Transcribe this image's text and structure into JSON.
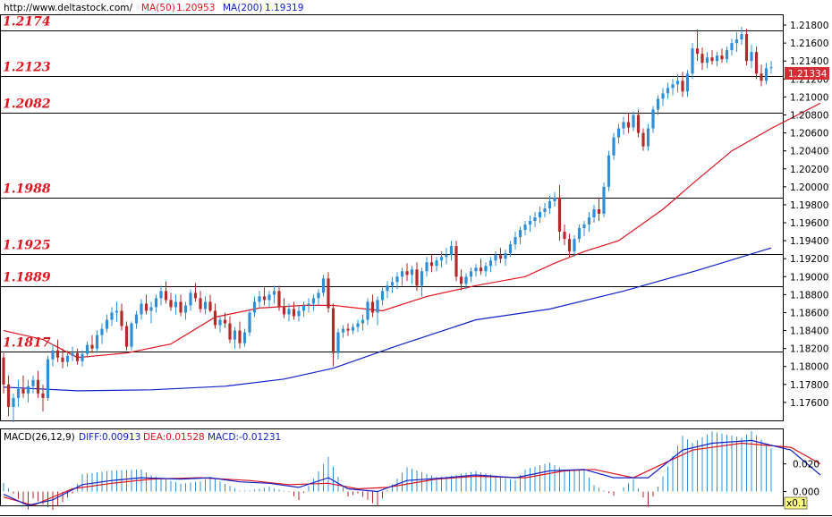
{
  "header": {
    "url": "http://www.deltastock.com/",
    "ma50_label": "MA(50)",
    "ma50_value": "1.20953",
    "ma200_label": "MA(200)",
    "ma200_value": "1.19319"
  },
  "macd_header": {
    "name": "MACD(26,12,9)",
    "diff": "DIFF:0.00913",
    "dea": "DEA:0.01528",
    "macd": "MACD:-0.01231"
  },
  "colors": {
    "up": "#2f8fd6",
    "down": "#b22a2a",
    "ma50": "#e0141e",
    "ma200": "#1020c8",
    "level_text": "#e0141e",
    "price_tag_bg": "#d82c34"
  },
  "levels": [
    "1.2174",
    "1.2123",
    "1.2082",
    "1.1988",
    "1.1925",
    "1.1889",
    "1.1817"
  ],
  "price_tag": "1.21334",
  "macd_scale_tag": "x0.1",
  "chart_data": {
    "type": "candlestick",
    "price_ylim": [
      1.174,
      1.2192
    ],
    "price_ticks": [
      "1.21800",
      "1.21600",
      "1.21400",
      "1.21200",
      "1.21000",
      "1.20800",
      "1.20600",
      "1.20400",
      "1.20200",
      "1.20000",
      "1.19800",
      "1.19600",
      "1.19400",
      "1.19200",
      "1.19000",
      "1.18800",
      "1.18600",
      "1.18400",
      "1.18200",
      "1.18000",
      "1.17800",
      "1.17600"
    ],
    "macd_ylim": [
      -0.01,
      0.045
    ],
    "macd_ticks": [
      "0.020",
      "0.000"
    ],
    "ohlc": [
      [
        1.181,
        1.1815,
        1.177,
        1.178
      ],
      [
        1.178,
        1.179,
        1.1745,
        1.1755
      ],
      [
        1.1755,
        1.177,
        1.1738,
        1.1765
      ],
      [
        1.1765,
        1.1785,
        1.1755,
        1.1775
      ],
      [
        1.1775,
        1.179,
        1.1765,
        1.177
      ],
      [
        1.177,
        1.1785,
        1.176,
        1.1778
      ],
      [
        1.1778,
        1.179,
        1.177,
        1.1785
      ],
      [
        1.1785,
        1.1795,
        1.1765,
        1.177
      ],
      [
        1.177,
        1.178,
        1.175,
        1.1765
      ],
      [
        1.1765,
        1.1812,
        1.1762,
        1.1808
      ],
      [
        1.1808,
        1.1825,
        1.18,
        1.1818
      ],
      [
        1.1818,
        1.183,
        1.1805,
        1.181
      ],
      [
        1.181,
        1.182,
        1.1798,
        1.1805
      ],
      [
        1.1805,
        1.1818,
        1.18,
        1.1812
      ],
      [
        1.1812,
        1.1822,
        1.1806,
        1.1815
      ],
      [
        1.1815,
        1.182,
        1.1802,
        1.1806
      ],
      [
        1.1806,
        1.1818,
        1.18,
        1.1814
      ],
      [
        1.1814,
        1.1828,
        1.181,
        1.1824
      ],
      [
        1.1824,
        1.1835,
        1.1815,
        1.182
      ],
      [
        1.182,
        1.184,
        1.1815,
        1.1835
      ],
      [
        1.1835,
        1.1848,
        1.1825,
        1.1842
      ],
      [
        1.1842,
        1.1858,
        1.1838,
        1.1852
      ],
      [
        1.1852,
        1.1866,
        1.1845,
        1.186
      ],
      [
        1.186,
        1.1872,
        1.185,
        1.1862
      ],
      [
        1.1862,
        1.187,
        1.184,
        1.1845
      ],
      [
        1.1845,
        1.185,
        1.1818,
        1.1822
      ],
      [
        1.1822,
        1.185,
        1.1818,
        1.1848
      ],
      [
        1.1848,
        1.1862,
        1.1842,
        1.1858
      ],
      [
        1.1858,
        1.1875,
        1.1852,
        1.187
      ],
      [
        1.187,
        1.188,
        1.1858,
        1.1862
      ],
      [
        1.1862,
        1.1872,
        1.1848,
        1.1866
      ],
      [
        1.1866,
        1.188,
        1.186,
        1.1876
      ],
      [
        1.1876,
        1.189,
        1.1868,
        1.1884
      ],
      [
        1.1884,
        1.1895,
        1.187,
        1.1874
      ],
      [
        1.1874,
        1.1882,
        1.1862,
        1.1866
      ],
      [
        1.1866,
        1.188,
        1.1858,
        1.1872
      ],
      [
        1.1872,
        1.188,
        1.1856,
        1.186
      ],
      [
        1.186,
        1.1872,
        1.1852,
        1.1868
      ],
      [
        1.1868,
        1.1886,
        1.1862,
        1.1882
      ],
      [
        1.1882,
        1.1893,
        1.1872,
        1.1876
      ],
      [
        1.1876,
        1.1884,
        1.186,
        1.1864
      ],
      [
        1.1864,
        1.1878,
        1.1858,
        1.1872
      ],
      [
        1.1872,
        1.188,
        1.186,
        1.1862
      ],
      [
        1.1862,
        1.187,
        1.1842,
        1.1846
      ],
      [
        1.1846,
        1.1856,
        1.1838,
        1.1852
      ],
      [
        1.1852,
        1.186,
        1.1843,
        1.1848
      ],
      [
        1.1848,
        1.1856,
        1.1826,
        1.183
      ],
      [
        1.183,
        1.1844,
        1.182,
        1.184
      ],
      [
        1.184,
        1.185,
        1.182,
        1.1826
      ],
      [
        1.1826,
        1.1842,
        1.1822,
        1.1838
      ],
      [
        1.1838,
        1.1864,
        1.1834,
        1.186
      ],
      [
        1.186,
        1.1878,
        1.1855,
        1.1872
      ],
      [
        1.1872,
        1.1884,
        1.1865,
        1.1878
      ],
      [
        1.1878,
        1.1888,
        1.1868,
        1.1874
      ],
      [
        1.1874,
        1.1884,
        1.1866,
        1.188
      ],
      [
        1.188,
        1.189,
        1.187,
        1.1884
      ],
      [
        1.1884,
        1.189,
        1.1862,
        1.1866
      ],
      [
        1.1866,
        1.1876,
        1.1854,
        1.1858
      ],
      [
        1.1858,
        1.187,
        1.185,
        1.1864
      ],
      [
        1.1864,
        1.1872,
        1.1852,
        1.1856
      ],
      [
        1.1856,
        1.1868,
        1.185,
        1.1862
      ],
      [
        1.1862,
        1.1872,
        1.1855,
        1.1868
      ],
      [
        1.1868,
        1.1876,
        1.186,
        1.187
      ],
      [
        1.187,
        1.188,
        1.1862,
        1.1876
      ],
      [
        1.1876,
        1.1886,
        1.1868,
        1.1882
      ],
      [
        1.1882,
        1.1902,
        1.1878,
        1.1898
      ],
      [
        1.1898,
        1.1905,
        1.186,
        1.1865
      ],
      [
        1.1865,
        1.187,
        1.18,
        1.1815
      ],
      [
        1.1815,
        1.1842,
        1.1808,
        1.1838
      ],
      [
        1.1838,
        1.1846,
        1.1832,
        1.1842
      ],
      [
        1.1842,
        1.1848,
        1.1834,
        1.184
      ],
      [
        1.184,
        1.1848,
        1.1836,
        1.1844
      ],
      [
        1.1844,
        1.1852,
        1.1838,
        1.1848
      ],
      [
        1.1848,
        1.1858,
        1.184,
        1.1852
      ],
      [
        1.1852,
        1.1876,
        1.1846,
        1.1872
      ],
      [
        1.1872,
        1.188,
        1.1855,
        1.186
      ],
      [
        1.186,
        1.1878,
        1.1846,
        1.1874
      ],
      [
        1.1874,
        1.1888,
        1.1868,
        1.1884
      ],
      [
        1.1884,
        1.1895,
        1.1876,
        1.189
      ],
      [
        1.189,
        1.19,
        1.1882,
        1.1894
      ],
      [
        1.1894,
        1.1905,
        1.1886,
        1.19
      ],
      [
        1.19,
        1.191,
        1.189,
        1.1906
      ],
      [
        1.1906,
        1.1915,
        1.1895,
        1.1902
      ],
      [
        1.1902,
        1.1912,
        1.1892,
        1.1908
      ],
      [
        1.1908,
        1.1916,
        1.1884,
        1.189
      ],
      [
        1.189,
        1.191,
        1.1878,
        1.1906
      ],
      [
        1.1906,
        1.1922,
        1.19,
        1.1916
      ],
      [
        1.1916,
        1.1925,
        1.1905,
        1.1912
      ],
      [
        1.1912,
        1.1922,
        1.1906,
        1.1918
      ],
      [
        1.1918,
        1.1928,
        1.191,
        1.1922
      ],
      [
        1.1922,
        1.1932,
        1.1914,
        1.1924
      ],
      [
        1.1924,
        1.194,
        1.1918,
        1.1934
      ],
      [
        1.1934,
        1.194,
        1.1895,
        1.19
      ],
      [
        1.19,
        1.1908,
        1.1885,
        1.1892
      ],
      [
        1.1892,
        1.1904,
        1.1886,
        1.19
      ],
      [
        1.19,
        1.191,
        1.1894,
        1.1906
      ],
      [
        1.1906,
        1.1914,
        1.19,
        1.191
      ],
      [
        1.191,
        1.192,
        1.1902,
        1.1906
      ],
      [
        1.1906,
        1.1916,
        1.19,
        1.1912
      ],
      [
        1.1912,
        1.1922,
        1.1905,
        1.1918
      ],
      [
        1.1918,
        1.1928,
        1.1912,
        1.1924
      ],
      [
        1.1924,
        1.1932,
        1.1915,
        1.192
      ],
      [
        1.192,
        1.193,
        1.1912,
        1.1926
      ],
      [
        1.1926,
        1.194,
        1.1922,
        1.1936
      ],
      [
        1.1936,
        1.195,
        1.193,
        1.1944
      ],
      [
        1.1944,
        1.1956,
        1.1936,
        1.1952
      ],
      [
        1.1952,
        1.1962,
        1.1946,
        1.1958
      ],
      [
        1.1958,
        1.1968,
        1.195,
        1.1962
      ],
      [
        1.1962,
        1.1972,
        1.1955,
        1.1966
      ],
      [
        1.1966,
        1.1978,
        1.196,
        1.1972
      ],
      [
        1.1972,
        1.1982,
        1.1966,
        1.1976
      ],
      [
        1.1976,
        1.199,
        1.197,
        1.1984
      ],
      [
        1.1984,
        1.1994,
        1.1978,
        1.1988
      ],
      [
        1.1988,
        1.2002,
        1.194,
        1.195
      ],
      [
        1.195,
        1.1958,
        1.1935,
        1.1942
      ],
      [
        1.1942,
        1.1948,
        1.1922,
        1.1928
      ],
      [
        1.1928,
        1.1946,
        1.1922,
        1.1942
      ],
      [
        1.1942,
        1.1958,
        1.1938,
        1.1954
      ],
      [
        1.1954,
        1.1962,
        1.1945,
        1.1958
      ],
      [
        1.1958,
        1.1972,
        1.195,
        1.1966
      ],
      [
        1.1966,
        1.198,
        1.196,
        1.1975
      ],
      [
        1.1975,
        1.1988,
        1.1962,
        1.197
      ],
      [
        1.197,
        1.2005,
        1.1966,
        1.2
      ],
      [
        1.2,
        1.204,
        1.1995,
        1.2035
      ],
      [
        1.2035,
        1.206,
        1.203,
        1.2055
      ],
      [
        1.2055,
        1.207,
        1.2048,
        1.2065
      ],
      [
        1.2065,
        1.2078,
        1.2058,
        1.2072
      ],
      [
        1.2072,
        1.2082,
        1.206,
        1.2066
      ],
      [
        1.2066,
        1.2084,
        1.2062,
        1.208
      ],
      [
        1.208,
        1.2086,
        1.2055,
        1.206
      ],
      [
        1.206,
        1.2065,
        1.204,
        1.2045
      ],
      [
        1.2045,
        1.207,
        1.204,
        1.2065
      ],
      [
        1.2065,
        1.209,
        1.206,
        1.2086
      ],
      [
        1.2086,
        1.2102,
        1.208,
        1.2098
      ],
      [
        1.2098,
        1.211,
        1.209,
        1.2104
      ],
      [
        1.2104,
        1.2116,
        1.2098,
        1.211
      ],
      [
        1.211,
        1.212,
        1.2102,
        1.2114
      ],
      [
        1.2114,
        1.2125,
        1.2105,
        1.2118
      ],
      [
        1.2118,
        1.2128,
        1.21,
        1.2106
      ],
      [
        1.2106,
        1.213,
        1.21,
        1.2126
      ],
      [
        1.2126,
        1.216,
        1.212,
        1.2154
      ],
      [
        1.2154,
        1.2175,
        1.214,
        1.2148
      ],
      [
        1.2148,
        1.2155,
        1.213,
        1.2138
      ],
      [
        1.2138,
        1.215,
        1.2132,
        1.2144
      ],
      [
        1.2144,
        1.2152,
        1.2136,
        1.214
      ],
      [
        1.214,
        1.215,
        1.2134,
        1.2146
      ],
      [
        1.2146,
        1.2154,
        1.2138,
        1.2142
      ],
      [
        1.2142,
        1.2156,
        1.2138,
        1.2152
      ],
      [
        1.2152,
        1.2165,
        1.2146,
        1.216
      ],
      [
        1.216,
        1.2172,
        1.215,
        1.2164
      ],
      [
        1.2164,
        1.2178,
        1.2158,
        1.217
      ],
      [
        1.217,
        1.2176,
        1.2135,
        1.214
      ],
      [
        1.214,
        1.2158,
        1.2132,
        1.215
      ],
      [
        1.215,
        1.2156,
        1.212,
        1.2126
      ],
      [
        1.2126,
        1.2136,
        1.2112,
        1.2118
      ],
      [
        1.2118,
        1.2138,
        1.2114,
        1.2132
      ],
      [
        1.2132,
        1.214,
        1.2126,
        1.2133
      ]
    ],
    "ma50": [
      [
        0,
        1.184
      ],
      [
        8,
        1.183
      ],
      [
        15,
        1.181
      ],
      [
        25,
        1.1815
      ],
      [
        34,
        1.1825
      ],
      [
        43,
        1.1855
      ],
      [
        52,
        1.1865
      ],
      [
        61,
        1.1868
      ],
      [
        67,
        1.1868
      ],
      [
        77,
        1.1862
      ],
      [
        86,
        1.1878
      ],
      [
        96,
        1.189
      ],
      [
        106,
        1.19
      ],
      [
        112,
        1.1915
      ],
      [
        118,
        1.1928
      ],
      [
        125,
        1.194
      ],
      [
        134,
        1.1975
      ],
      [
        141,
        1.2008
      ],
      [
        148,
        1.204
      ],
      [
        156,
        1.2065
      ],
      [
        166,
        1.2093
      ]
    ],
    "ma200": [
      [
        0,
        1.1777
      ],
      [
        15,
        1.1773
      ],
      [
        30,
        1.1774
      ],
      [
        45,
        1.1778
      ],
      [
        57,
        1.1786
      ],
      [
        67,
        1.1798
      ],
      [
        80,
        1.1823
      ],
      [
        96,
        1.1852
      ],
      [
        111,
        1.1864
      ],
      [
        126,
        1.1884
      ],
      [
        141,
        1.1907
      ],
      [
        156,
        1.1932
      ]
    ],
    "macd_diff": [
      [
        0,
        -0.002
      ],
      [
        5,
        -0.01
      ],
      [
        10,
        -0.006
      ],
      [
        16,
        0.005
      ],
      [
        22,
        0.008
      ],
      [
        28,
        0.01
      ],
      [
        36,
        0.009
      ],
      [
        42,
        0.01
      ],
      [
        48,
        0.007
      ],
      [
        54,
        0.006
      ],
      [
        60,
        0.003
      ],
      [
        66,
        0.01
      ],
      [
        70,
        0.002
      ],
      [
        76,
        0.0
      ],
      [
        82,
        0.008
      ],
      [
        90,
        0.01
      ],
      [
        96,
        0.012
      ],
      [
        104,
        0.01
      ],
      [
        111,
        0.015
      ],
      [
        118,
        0.016
      ],
      [
        124,
        0.01
      ],
      [
        131,
        0.01
      ],
      [
        138,
        0.03
      ],
      [
        144,
        0.035
      ],
      [
        152,
        0.037
      ],
      [
        160,
        0.03
      ],
      [
        166,
        0.012
      ]
    ],
    "macd_dea": [
      [
        0,
        -0.004
      ],
      [
        6,
        -0.01
      ],
      [
        14,
        0.002
      ],
      [
        22,
        0.006
      ],
      [
        30,
        0.009
      ],
      [
        40,
        0.01
      ],
      [
        50,
        0.008
      ],
      [
        58,
        0.005
      ],
      [
        66,
        0.006
      ],
      [
        72,
        0.002
      ],
      [
        78,
        0.003
      ],
      [
        88,
        0.009
      ],
      [
        96,
        0.011
      ],
      [
        106,
        0.01
      ],
      [
        114,
        0.015
      ],
      [
        120,
        0.016
      ],
      [
        128,
        0.01
      ],
      [
        134,
        0.02
      ],
      [
        140,
        0.03
      ],
      [
        150,
        0.035
      ],
      [
        160,
        0.032
      ],
      [
        166,
        0.02
      ]
    ]
  }
}
